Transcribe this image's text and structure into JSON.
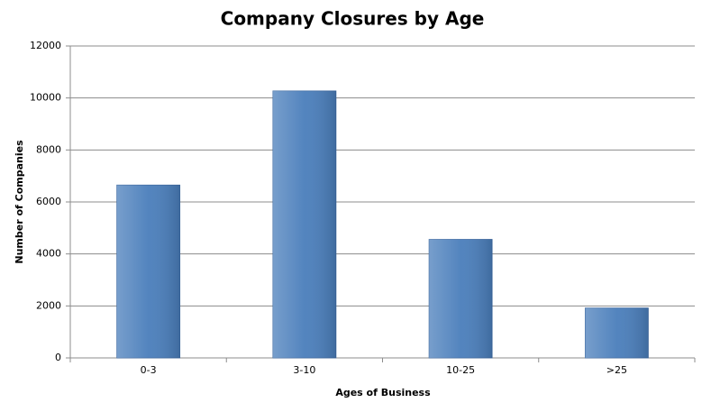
{
  "chart_data": {
    "type": "bar",
    "title": "Company Closures by Age",
    "x_label": "Ages of Business",
    "y_label": "Number of Companies",
    "categories": [
      "0-3",
      "3-10",
      "10-25",
      ">25"
    ],
    "values": [
      6650,
      10270,
      4560,
      1920
    ],
    "color": "#4a7ebb",
    "ylim": [
      0,
      12000
    ],
    "yticks": [
      0,
      2000,
      4000,
      6000,
      8000,
      10000,
      12000
    ],
    "grid": true
  }
}
